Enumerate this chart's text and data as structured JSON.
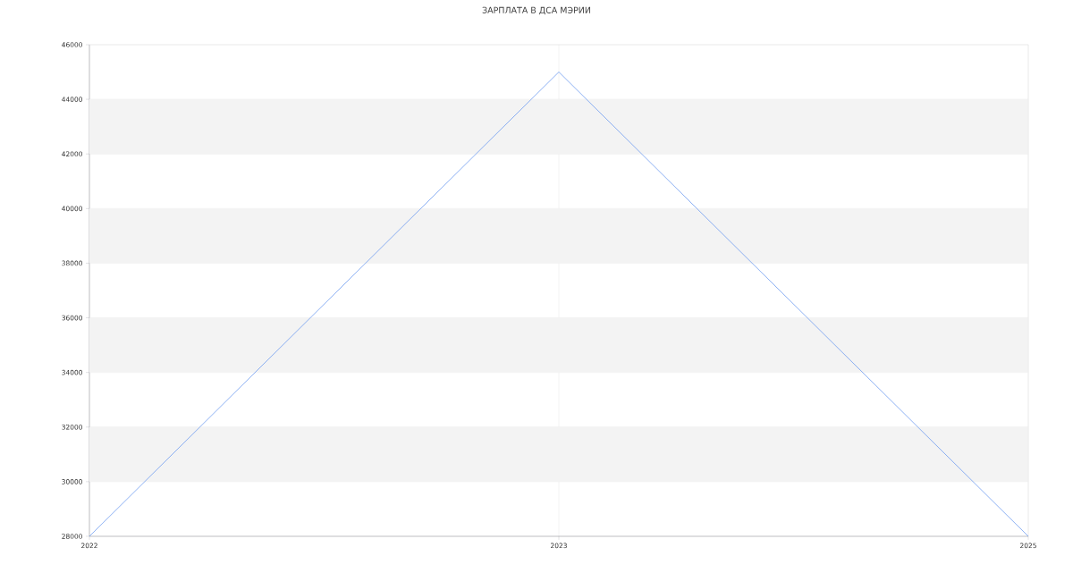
{
  "chart_data": {
    "type": "line",
    "title": "ЗАРПЛАТА В ДСА МЭРИИ",
    "categories": [
      "2022",
      "2023",
      "2025"
    ],
    "series": [
      {
        "color": "#6f9cf0",
        "values": [
          28000,
          45000,
          28000
        ]
      }
    ],
    "ylim": [
      28000,
      46000
    ],
    "yticks": [
      28000,
      30000,
      32000,
      34000,
      36000,
      38000,
      40000,
      42000,
      44000,
      46000
    ],
    "grid": true,
    "bands": [
      {
        "axis": "y",
        "from": 30000,
        "to": 32000,
        "color": "#f3f3f3"
      },
      {
        "axis": "y",
        "from": 34000,
        "to": 36000,
        "color": "#f3f3f3"
      },
      {
        "axis": "y",
        "from": 38000,
        "to": 40000,
        "color": "#f3f3f3"
      },
      {
        "axis": "y",
        "from": 42000,
        "to": 44000,
        "color": "#f3f3f3"
      }
    ]
  }
}
